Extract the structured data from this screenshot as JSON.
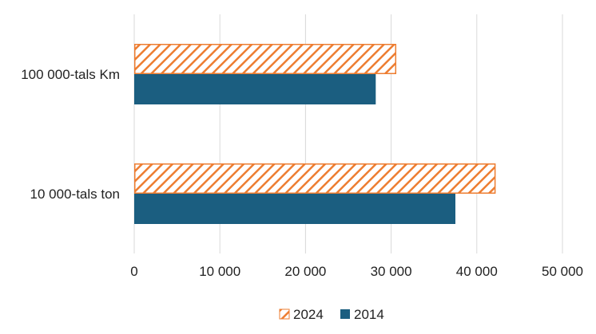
{
  "chart_data": {
    "type": "bar",
    "orientation": "horizontal",
    "categories": [
      "100 000-tals Km",
      "10 000-tals ton"
    ],
    "series": [
      {
        "name": "2024",
        "values": [
          30600,
          42200
        ],
        "color": "#ED7D31",
        "pattern": "diagonal-hatch"
      },
      {
        "name": "2014",
        "values": [
          28200,
          37500
        ],
        "color": "#1B5E80",
        "pattern": "solid"
      }
    ],
    "xlim": [
      0,
      50000
    ],
    "x_ticks": [
      0,
      10000,
      20000,
      30000,
      40000,
      50000
    ],
    "x_tick_labels": [
      "0",
      "10 000",
      "20 000",
      "30 000",
      "40 000",
      "50 000"
    ],
    "title": "",
    "xlabel": "",
    "ylabel": "",
    "grid": "vertical",
    "legend_position": "bottom"
  }
}
